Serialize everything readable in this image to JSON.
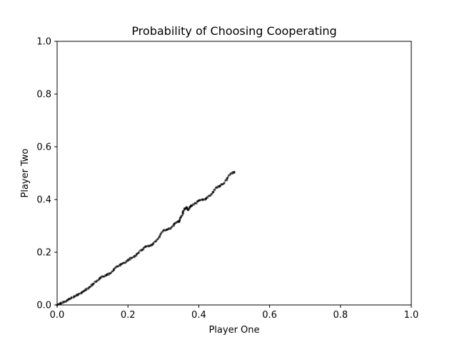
{
  "chart_data": {
    "type": "scatter",
    "title": "Probability of Choosing Cooperating",
    "xlabel": "Player One",
    "ylabel": "Player Two",
    "xlim": [
      0.0,
      1.0
    ],
    "ylim": [
      0.0,
      1.0
    ],
    "xticks": [
      "0.0",
      "0.2",
      "0.4",
      "0.6",
      "0.8",
      "1.0"
    ],
    "yticks": [
      "0.0",
      "0.2",
      "0.4",
      "0.6",
      "0.8",
      "1.0"
    ],
    "grid": false,
    "legend": "none",
    "marker_color": "#000000",
    "series": [
      {
        "points": [
          [
            0.0,
            0.0
          ],
          [
            0.01,
            0.006
          ],
          [
            0.02,
            0.012
          ],
          [
            0.03,
            0.019
          ],
          [
            0.04,
            0.026
          ],
          [
            0.05,
            0.033
          ],
          [
            0.06,
            0.04
          ],
          [
            0.07,
            0.048
          ],
          [
            0.08,
            0.056
          ],
          [
            0.09,
            0.066
          ],
          [
            0.1,
            0.076
          ],
          [
            0.11,
            0.088
          ],
          [
            0.12,
            0.1
          ],
          [
            0.13,
            0.108
          ],
          [
            0.14,
            0.114
          ],
          [
            0.15,
            0.12
          ],
          [
            0.16,
            0.134
          ],
          [
            0.17,
            0.146
          ],
          [
            0.18,
            0.154
          ],
          [
            0.19,
            0.16
          ],
          [
            0.2,
            0.17
          ],
          [
            0.21,
            0.178
          ],
          [
            0.22,
            0.186
          ],
          [
            0.23,
            0.198
          ],
          [
            0.24,
            0.21
          ],
          [
            0.25,
            0.222
          ],
          [
            0.26,
            0.224
          ],
          [
            0.27,
            0.23
          ],
          [
            0.28,
            0.244
          ],
          [
            0.29,
            0.262
          ],
          [
            0.3,
            0.282
          ],
          [
            0.31,
            0.286
          ],
          [
            0.32,
            0.29
          ],
          [
            0.33,
            0.306
          ],
          [
            0.34,
            0.316
          ],
          [
            0.345,
            0.318
          ],
          [
            0.35,
            0.334
          ],
          [
            0.355,
            0.35
          ],
          [
            0.36,
            0.364
          ],
          [
            0.365,
            0.37
          ],
          [
            0.37,
            0.36
          ],
          [
            0.375,
            0.372
          ],
          [
            0.38,
            0.376
          ],
          [
            0.39,
            0.386
          ],
          [
            0.4,
            0.396
          ],
          [
            0.41,
            0.4
          ],
          [
            0.42,
            0.402
          ],
          [
            0.43,
            0.414
          ],
          [
            0.44,
            0.428
          ],
          [
            0.45,
            0.446
          ],
          [
            0.46,
            0.452
          ],
          [
            0.47,
            0.46
          ],
          [
            0.48,
            0.48
          ],
          [
            0.49,
            0.498
          ],
          [
            0.5,
            0.504
          ]
        ]
      }
    ]
  }
}
